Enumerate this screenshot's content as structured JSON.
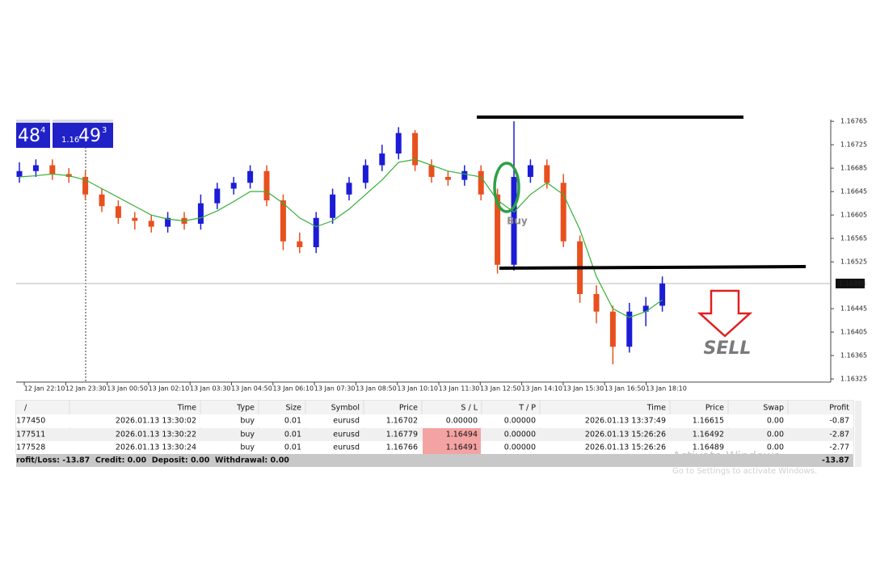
{
  "quote": {
    "bid_big": "48",
    "bid_small": "4",
    "ask_prefix": "1.16",
    "ask_big": "49",
    "ask_small": "3"
  },
  "chart_data": {
    "type": "candlestick",
    "x_labels": [
      "12 Jan 22:10",
      "12 Jan 23:30",
      "13 Jan 00:50",
      "13 Jan 02:10",
      "13 Jan 03:30",
      "13 Jan 04:50",
      "13 Jan 06:10",
      "13 Jan 07:30",
      "13 Jan 08:50",
      "13 Jan 10:10",
      "13 Jan 11:30",
      "13 Jan 12:50",
      "13 Jan 14:10",
      "13 Jan 15:30",
      "13 Jan 16:50",
      "13 Jan 18:10"
    ],
    "open": [
      1.1667,
      1.1668,
      1.1669,
      1.16675,
      1.1667,
      1.1664,
      1.1662,
      1.166,
      1.16595,
      1.16585,
      1.166,
      1.1659,
      1.16625,
      1.1665,
      1.1666,
      1.1668,
      1.1663,
      1.1656,
      1.1655,
      1.166,
      1.1664,
      1.1666,
      1.1669,
      1.1671,
      1.16745,
      1.1669,
      1.1667,
      1.16665,
      1.1668,
      1.1664,
      1.1652,
      1.1667,
      1.1669,
      1.1666,
      1.1656,
      1.1647,
      1.1644,
      1.1638,
      1.1644,
      1.1645
    ],
    "high": [
      1.16695,
      1.167,
      1.167,
      1.16685,
      1.1668,
      1.1665,
      1.1663,
      1.1661,
      1.16605,
      1.1661,
      1.1661,
      1.1664,
      1.1666,
      1.1667,
      1.1669,
      1.1669,
      1.1664,
      1.16575,
      1.1661,
      1.1665,
      1.1667,
      1.167,
      1.16725,
      1.16755,
      1.1675,
      1.167,
      1.1668,
      1.1669,
      1.1669,
      1.1665,
      1.16765,
      1.167,
      1.167,
      1.16675,
      1.1657,
      1.16485,
      1.1645,
      1.16455,
      1.16465,
      1.165
    ],
    "low": [
      1.1666,
      1.1667,
      1.16665,
      1.1666,
      1.1663,
      1.1661,
      1.1659,
      1.1658,
      1.16575,
      1.16575,
      1.1658,
      1.1658,
      1.16615,
      1.1664,
      1.1665,
      1.1662,
      1.16545,
      1.1654,
      1.1654,
      1.1659,
      1.1663,
      1.1665,
      1.1668,
      1.167,
      1.1668,
      1.1666,
      1.16655,
      1.16655,
      1.1663,
      1.16505,
      1.1651,
      1.1666,
      1.1665,
      1.1655,
      1.16455,
      1.1642,
      1.1635,
      1.1637,
      1.16415,
      1.1644
    ],
    "close": [
      1.1668,
      1.1669,
      1.16675,
      1.1667,
      1.1664,
      1.1662,
      1.166,
      1.16595,
      1.16585,
      1.166,
      1.1659,
      1.16625,
      1.1665,
      1.1666,
      1.1668,
      1.1663,
      1.1656,
      1.1655,
      1.166,
      1.1664,
      1.1666,
      1.1669,
      1.1671,
      1.16745,
      1.1669,
      1.1667,
      1.16665,
      1.1668,
      1.1664,
      1.1652,
      1.1667,
      1.1669,
      1.1666,
      1.1656,
      1.1647,
      1.1644,
      1.1638,
      1.1644,
      1.1645,
      1.16488
    ],
    "ma": [
      1.1667,
      1.16672,
      1.16675,
      1.16672,
      1.16665,
      1.1665,
      1.16635,
      1.1662,
      1.16605,
      1.16598,
      1.16595,
      1.166,
      1.16612,
      1.16628,
      1.16645,
      1.16645,
      1.16625,
      1.166,
      1.16585,
      1.16595,
      1.16615,
      1.1664,
      1.16665,
      1.16695,
      1.167,
      1.1669,
      1.1668,
      1.16675,
      1.1667,
      1.1663,
      1.1661,
      1.1664,
      1.1666,
      1.1664,
      1.1658,
      1.165,
      1.16445,
      1.1643,
      1.1644,
      1.1646
    ],
    "up_color": "#1c1cd6",
    "down_color": "#e8501e",
    "ma_color": "#35b035",
    "ylim": [
      1.16321,
      1.16768
    ],
    "yticks": [
      1.16765,
      1.16725,
      1.16685,
      1.16645,
      1.16605,
      1.16565,
      1.16525,
      1.16445,
      1.16405,
      1.16365,
      1.16325
    ],
    "current_price": 1.16488,
    "annotations": {
      "buy": "Buy",
      "sell": "SELL"
    }
  },
  "table": {
    "header": [
      "/",
      "Time",
      "Type",
      "Size",
      "Symbol",
      "Price",
      "S / L",
      "T / P",
      "Time",
      "Price",
      "Swap",
      "Profit"
    ],
    "rows": [
      [
        "177450",
        "2026.01.13 13:30:02",
        "buy",
        "0.01",
        "eurusd",
        "1.16702",
        "0.00000",
        "0.00000",
        "2026.01.13 13:37:49",
        "1.16615",
        "0.00",
        "-0.87"
      ],
      [
        "177511",
        "2026.01.13 13:30:22",
        "buy",
        "0.01",
        "eurusd",
        "1.16779",
        "1.16494",
        "0.00000",
        "2026.01.13 15:26:26",
        "1.16492",
        "0.00",
        "-2.87"
      ],
      [
        "177528",
        "2026.01.13 13:30:24",
        "buy",
        "0.01",
        "eurusd",
        "1.16766",
        "1.16491",
        "0.00000",
        "2026.01.13 15:26:26",
        "1.16489",
        "0.00",
        "-2.77"
      ]
    ],
    "footer": {
      "summary": "rofit/Loss: -13.87  Credit: 0.00  Deposit: 0.00  Withdrawal: 0.00",
      "total": "-13.87"
    }
  },
  "watermark": {
    "title": "Activate Windows",
    "subtitle": "Go to Settings to activate Windows."
  }
}
